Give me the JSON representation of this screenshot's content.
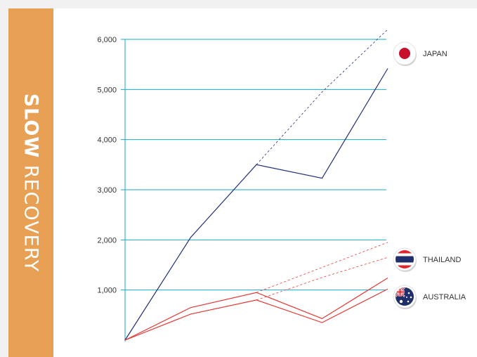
{
  "side_title": {
    "strong": "SLOW",
    "light": "RECOVERY"
  },
  "chart_data": {
    "type": "line",
    "title": "",
    "xlabel": "",
    "ylabel": "",
    "ylim": [
      0,
      6000
    ],
    "y_ticks": [
      1000,
      2000,
      3000,
      4000,
      5000,
      6000
    ],
    "y_tick_labels": [
      "1,000",
      "2,000",
      "3,000",
      "4,000",
      "5,000",
      "6,000"
    ],
    "x": [
      0,
      1,
      2,
      3,
      4
    ],
    "grid": true,
    "series": [
      {
        "name": "JAPAN",
        "color": "#1f2f7a",
        "values": [
          0,
          2050,
          3500,
          3230,
          5420
        ],
        "trend_values": [
          3500,
          4950,
          6200
        ],
        "icon": "japan-flag-icon"
      },
      {
        "name": "THAILAND",
        "color": "#e53935",
        "values": [
          0,
          650,
          950,
          430,
          1240
        ],
        "trend_values": [
          950,
          1450,
          1950
        ],
        "icon": "thailand-flag-icon"
      },
      {
        "name": "AUSTRALIA",
        "color": "#e53935",
        "values": [
          0,
          520,
          800,
          350,
          1020
        ],
        "trend_values": [
          800,
          1250,
          1650
        ],
        "icon": "australia-flag-icon"
      }
    ]
  }
}
